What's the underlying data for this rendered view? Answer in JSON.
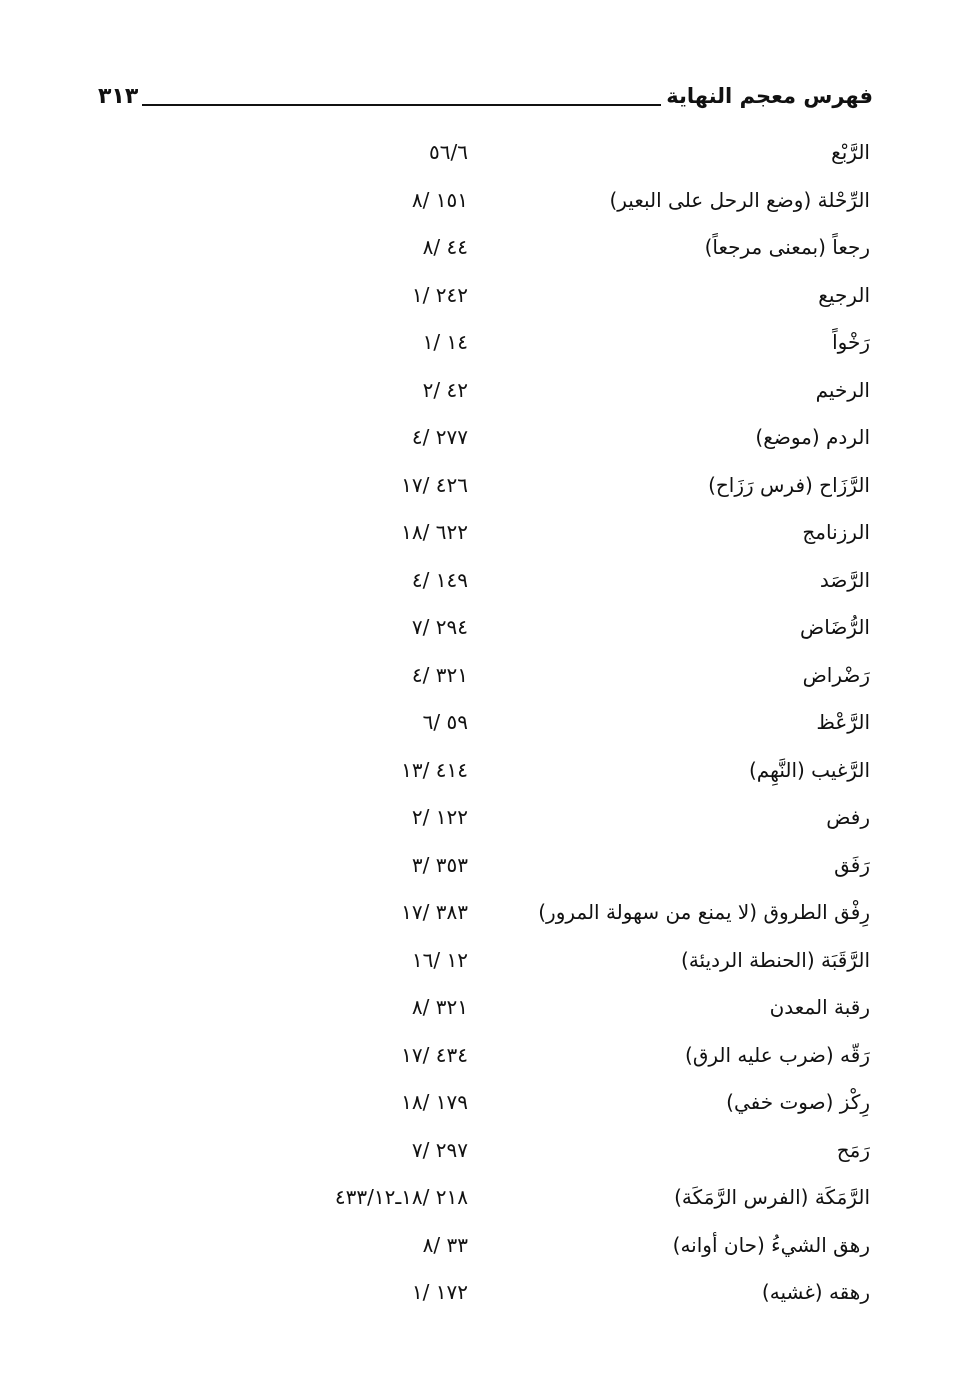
{
  "header": {
    "page_number": "٣١٣",
    "title": "فهرس معجم النهاية"
  },
  "entries": [
    {
      "term": "الرَّبْع",
      "ref": "٥٦/٦"
    },
    {
      "term": "الرِّحْلة (وضع الرحل على البعير)",
      "ref": "١٥١ /٨"
    },
    {
      "term": "رجعاً (بمعنى مرجعاً)",
      "ref": "٤٤ /٨"
    },
    {
      "term": "الرجيع",
      "ref": "٢٤٢ /١"
    },
    {
      "term": "رَخْواً",
      "ref": "١٤ /١"
    },
    {
      "term": "الرخيم",
      "ref": "٤٢ /٢"
    },
    {
      "term": "الردم (موضع)",
      "ref": "٢٧٧ /٤"
    },
    {
      "term": "الرَّزَاح (فرس رَزَاح)",
      "ref": "٤٢٦ /١٧"
    },
    {
      "term": "الرزنامج",
      "ref": "٦٢٢ /١٨"
    },
    {
      "term": "الرَّصَد",
      "ref": "١٤٩ /٤"
    },
    {
      "term": "الرُّضَاض",
      "ref": "٢٩٤ /٧"
    },
    {
      "term": "رَضْراض",
      "ref": "٣٢١ /٤"
    },
    {
      "term": "الرَّعْظ",
      "ref": "٥٩ /٦"
    },
    {
      "term": "الرَّغيب (النَّهِم)",
      "ref": "٤١٤ /١٣"
    },
    {
      "term": "رفض",
      "ref": "١٢٢ /٢"
    },
    {
      "term": "رَفَق",
      "ref": "٣٥٣ /٣"
    },
    {
      "term": "رِفْق الطروق (لا يمنع من سهولة المرور)",
      "ref": "٣٨٣ /١٧"
    },
    {
      "term": "الرَّقَبَة (الحنطة الرديئة)",
      "ref": "١٢ /١٦"
    },
    {
      "term": "رقبة المعدن",
      "ref": "٣٢١ /٨"
    },
    {
      "term": "رَقّه (ضرب عليه الرق)",
      "ref": "٤٣٤ /١٧"
    },
    {
      "term": "رِكْز (صوت خفي)",
      "ref": "١٧٩ /١٨"
    },
    {
      "term": "رَمَح",
      "ref": "٢٩٧ /٧"
    },
    {
      "term": "الرَّمَكَة (الفرس الرَّمَكَة)",
      "ref": "٢١٨ /١٨ـ٤٣٣/١٢"
    },
    {
      "term": "رهق الشيءُ (حان أوانه)",
      "ref": "٣٣ /٨"
    },
    {
      "term": "رهقه (غشيه)",
      "ref": "١٧٢ /١"
    }
  ]
}
